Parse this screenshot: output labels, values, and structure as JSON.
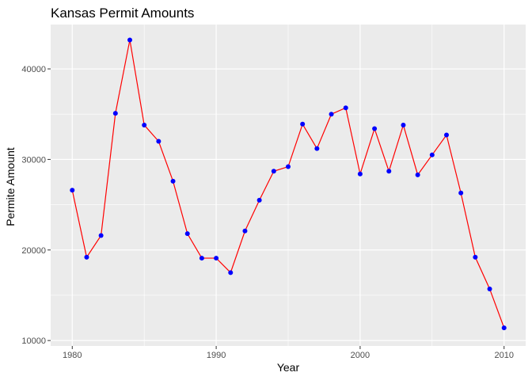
{
  "chart_data": {
    "type": "line",
    "title": "Kansas Permit Amounts",
    "xlabel": "Year",
    "ylabel": "Permite Amount",
    "xlim": [
      1978.5,
      2011.5
    ],
    "ylim": [
      9400,
      44900
    ],
    "x_ticks": [
      1980,
      1990,
      2000,
      2010
    ],
    "x_tick_labels": [
      "1980",
      "1990",
      "2000",
      "2010"
    ],
    "x_minor_ticks": [
      1985,
      1995,
      2005
    ],
    "y_ticks": [
      10000,
      20000,
      30000,
      40000
    ],
    "y_tick_labels": [
      "10000",
      "20000",
      "30000",
      "40000"
    ],
    "y_minor_ticks": [
      15000,
      25000,
      35000
    ],
    "grid": true,
    "legend": "none",
    "colors": {
      "panel_background": "#ebebeb",
      "grid_line": "#ffffff",
      "line": "#ff0000",
      "point": "#0000ff",
      "tick_mark": "#333333"
    },
    "series": [
      {
        "x": [
          1980,
          1981,
          1982,
          1983,
          1984,
          1985,
          1986,
          1987,
          1988,
          1989,
          1990,
          1991,
          1992,
          1993,
          1994,
          1995,
          1996,
          1997,
          1998,
          1999,
          2000,
          2001,
          2002,
          2003,
          2004,
          2005,
          2006,
          2007,
          2008,
          2009,
          2010
        ],
        "values": [
          26600,
          19200,
          21600,
          35100,
          43200,
          33800,
          32000,
          27600,
          21800,
          19100,
          19100,
          17500,
          22100,
          25500,
          28700,
          29200,
          33900,
          31200,
          35000,
          35700,
          28400,
          33400,
          28700,
          33800,
          28300,
          30500,
          32700,
          26300,
          19200,
          15700,
          11400
        ]
      }
    ]
  }
}
